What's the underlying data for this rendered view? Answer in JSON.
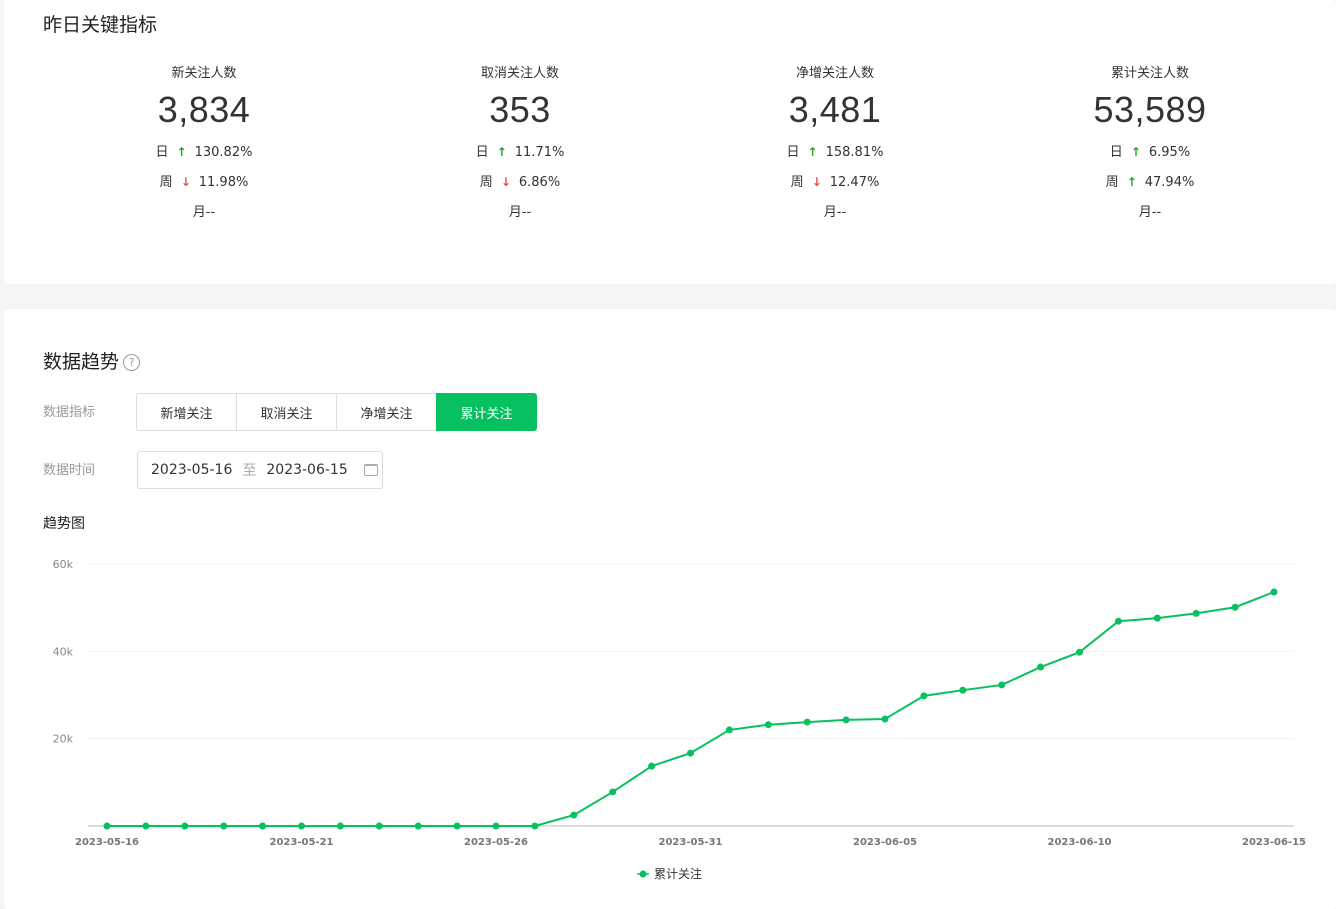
{
  "section1": {
    "title": "昨日关键指标",
    "metrics": [
      {
        "label": "新关注人数",
        "value": "3,834",
        "day": {
          "label": "日",
          "dir": "up",
          "value": "130.82%"
        },
        "week": {
          "label": "周",
          "dir": "down",
          "value": "11.98%"
        },
        "month": "月--"
      },
      {
        "label": "取消关注人数",
        "value": "353",
        "day": {
          "label": "日",
          "dir": "up",
          "value": "11.71%"
        },
        "week": {
          "label": "周",
          "dir": "down",
          "value": "6.86%"
        },
        "month": "月--"
      },
      {
        "label": "净增关注人数",
        "value": "3,481",
        "day": {
          "label": "日",
          "dir": "up",
          "value": "158.81%"
        },
        "week": {
          "label": "周",
          "dir": "down",
          "value": "12.47%"
        },
        "month": "月--"
      },
      {
        "label": "累计关注人数",
        "value": "53,589",
        "day": {
          "label": "日",
          "dir": "up",
          "value": "6.95%"
        },
        "week": {
          "label": "周",
          "dir": "up",
          "value": "47.94%"
        },
        "month": "月--"
      }
    ]
  },
  "section2": {
    "title": "数据趋势",
    "help_icon": "question-circle-icon",
    "metric_label": "数据指标",
    "tabs": [
      "新增关注",
      "取消关注",
      "净增关注",
      "累计关注"
    ],
    "active_tab": "累计关注",
    "time_label": "数据时间",
    "date_start": "2023-05-16",
    "date_sep": "至",
    "date_end": "2023-06-15",
    "calendar_icon": "calendar-icon",
    "chart_title": "趋势图"
  },
  "colors": {
    "accent": "#07c160",
    "up": "#1aad19",
    "down": "#f04b4b"
  },
  "chart_data": {
    "type": "line",
    "ylim": [
      0,
      60000
    ],
    "yticks": [
      "60k",
      "40k",
      "20k"
    ],
    "yticks_values": [
      60000,
      40000,
      20000
    ],
    "x": [
      "2023-05-16",
      "2023-05-17",
      "2023-05-18",
      "2023-05-19",
      "2023-05-20",
      "2023-05-21",
      "2023-05-22",
      "2023-05-23",
      "2023-05-24",
      "2023-05-25",
      "2023-05-26",
      "2023-05-27",
      "2023-05-28",
      "2023-05-29",
      "2023-05-30",
      "2023-05-31",
      "2023-06-01",
      "2023-06-02",
      "2023-06-03",
      "2023-06-04",
      "2023-06-05",
      "2023-06-06",
      "2023-06-07",
      "2023-06-08",
      "2023-06-09",
      "2023-06-10",
      "2023-06-11",
      "2023-06-12",
      "2023-06-13",
      "2023-06-14",
      "2023-06-15"
    ],
    "xtick_labels": [
      "2023-05-16",
      "2023-05-21",
      "2023-05-26",
      "2023-05-31",
      "2023-06-05",
      "2023-06-10",
      "2023-06-15"
    ],
    "series": [
      {
        "name": "累计关注",
        "color": "#07c160",
        "values": [
          0,
          0,
          0,
          0,
          0,
          0,
          0,
          0,
          0,
          0,
          0,
          0,
          2500,
          7800,
          13700,
          16700,
          22000,
          23200,
          23800,
          24300,
          24500,
          29800,
          31100,
          32300,
          36400,
          39800,
          46900,
          47600,
          48700,
          50100,
          53589
        ]
      }
    ],
    "legend": "bottom",
    "grid": true
  }
}
